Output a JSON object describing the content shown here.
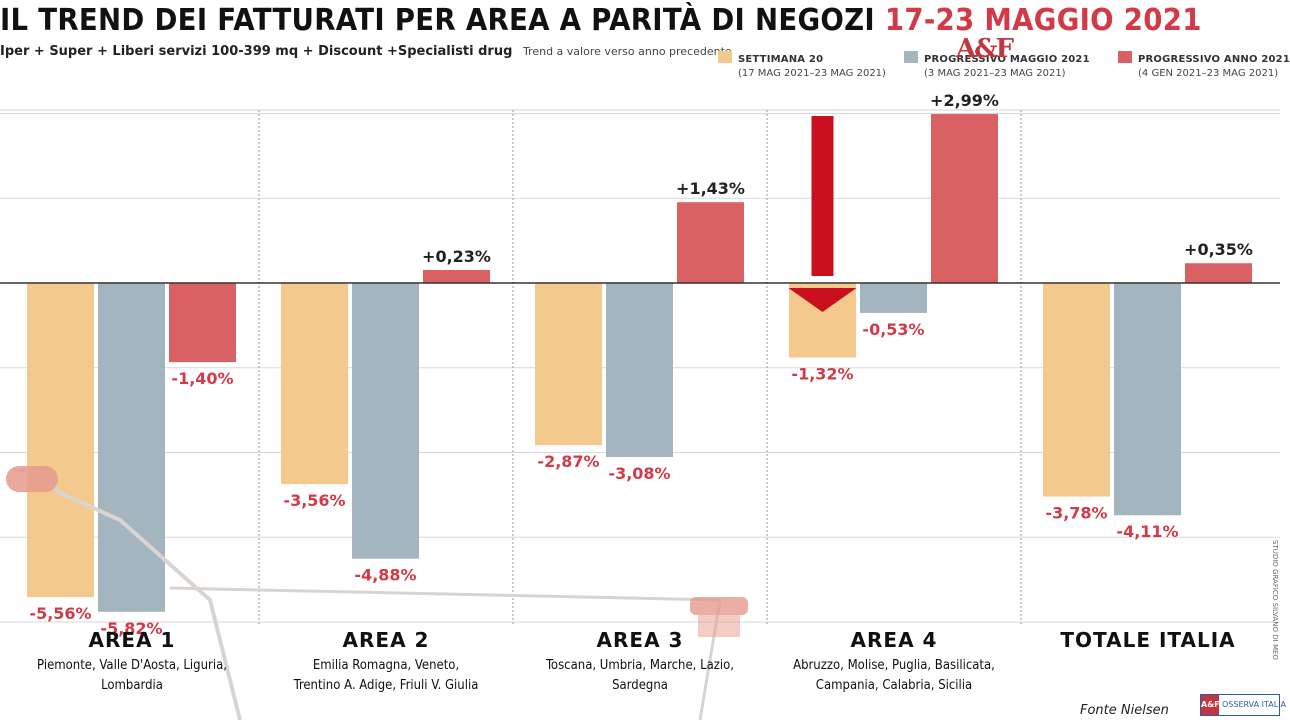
{
  "header": {
    "title_main": "IL TREND DEI FATTURATI PER AREA A PARITÀ DI NEGOZI",
    "title_accent": "17-23 MAGGIO 2021",
    "subtitle": "Iper + Super + Liberi servizi 100-399 mq + Discount +Specialisti drug",
    "subtitle_note": "Trend a valore verso anno precedente"
  },
  "legend": [
    {
      "name": "SETTIMANA 20",
      "range": "(17 MAG 2021–23 MAG 2021)",
      "color": "#f4c98e"
    },
    {
      "name": "PROGRESSIVO MAGGIO 2021",
      "range": "(3 MAG 2021–23 MAG 2021)",
      "color": "#a3b6c0"
    },
    {
      "name": "PROGRESSIVO ANNO 2021",
      "range": "(4 GEN 2021–23 MAG 2021)",
      "color": "#d96163"
    }
  ],
  "areas": [
    {
      "name": "AREA 1",
      "regions": [
        "Piemonte, Valle D'Aosta, Liguria,",
        "Lombardia"
      ]
    },
    {
      "name": "AREA 2",
      "regions": [
        "Emilia Romagna, Veneto,",
        "Trentino A. Adige, Friuli V. Giulia"
      ]
    },
    {
      "name": "AREA 3",
      "regions": [
        "Toscana, Umbria, Marche, Lazio,",
        "Sardegna"
      ]
    },
    {
      "name": "AREA 4",
      "regions": [
        "Abruzzo, Molise, Puglia, Basilicata,",
        "Campania, Calabria, Sicilia"
      ]
    },
    {
      "name": "TOTALE ITALIA",
      "regions": []
    }
  ],
  "chart_data": {
    "type": "bar",
    "categories": [
      "AREA 1",
      "AREA 2",
      "AREA 3",
      "AREA 4",
      "TOTALE ITALIA"
    ],
    "series": [
      {
        "name": "SETTIMANA 20",
        "values": [
          -5.56,
          -3.56,
          -2.87,
          -1.32,
          -3.78
        ],
        "labels": [
          "-5,56%",
          "-3,56%",
          "-2,87%",
          "-1,32%",
          "-3,78%"
        ]
      },
      {
        "name": "PROGRESSIVO MAGGIO 2021",
        "values": [
          -5.82,
          -4.88,
          -3.08,
          -0.53,
          -4.11
        ],
        "labels": [
          "-5,82%",
          "-4,88%",
          "-3,08%",
          "-0,53%",
          "-4,11%"
        ]
      },
      {
        "name": "PROGRESSIVO ANNO 2021",
        "values": [
          -1.4,
          0.23,
          1.43,
          2.99,
          0.35
        ],
        "labels": [
          "-1,40%",
          "+0,23%",
          "+1,43%",
          "+2,99%",
          "+0,35%"
        ]
      }
    ],
    "ylim": [
      -6,
      3
    ],
    "label_color_negative": "#d33a48",
    "label_color_positive": "#222222",
    "highlight_arrow_color": "#c8101e"
  },
  "footer": {
    "source": "Fonte Nielsen",
    "logo_text": "OSSERVA ITALIA",
    "logo_mark": "A&F",
    "watermark": "A&F",
    "side_credit": "STUDIO GRAFICO SILVANO DI MEO"
  }
}
